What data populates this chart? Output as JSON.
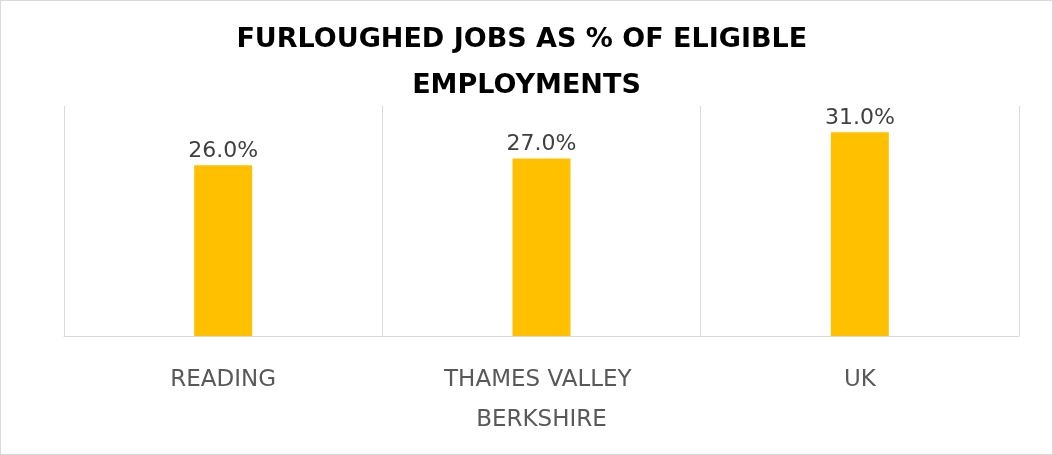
{
  "chart_data": {
    "type": "bar",
    "title": "FURLOUGHED JOBS AS % OF ELIGIBLE EMPLOYMENTS",
    "categories": [
      "READING",
      "THAMES VALLEY BERKSHIRE",
      "UK"
    ],
    "series": [
      {
        "values": [
          26.0,
          27.0,
          31.0
        ],
        "value_labels": [
          "26.0%",
          "27.0%",
          "31.0%"
        ],
        "color": "#ffc000"
      }
    ],
    "grid": "x"
  }
}
